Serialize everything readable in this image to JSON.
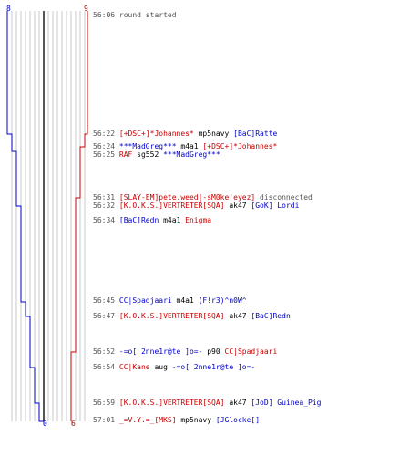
{
  "scores": {
    "blue_start": "8",
    "red_start": "9",
    "blue_end": "0",
    "red_end": "6"
  },
  "colors": {
    "blue": "#0000c8",
    "red": "#c80000",
    "gray": "#555555",
    "grid": "#c8c8c8"
  },
  "events": [
    {
      "time": "56:06",
      "parts": [
        {
          "text": "round started",
          "color": "gray"
        }
      ]
    },
    {
      "time": "56:22",
      "parts": [
        {
          "text": "[+DSC+]*Johannes*",
          "color": "red"
        },
        {
          "text": " mp5navy ",
          "color": "black"
        },
        {
          "text": "[BaC]Ratte",
          "color": "blue"
        }
      ]
    },
    {
      "time": "56:24",
      "parts": [
        {
          "text": "***MadGreg***",
          "color": "blue"
        },
        {
          "text": " m4a1 ",
          "color": "black"
        },
        {
          "text": "[+DSC+]*Johannes*",
          "color": "red"
        }
      ]
    },
    {
      "time": "56:25",
      "parts": [
        {
          "text": "RAF",
          "color": "red"
        },
        {
          "text": " sg552 ",
          "color": "black"
        },
        {
          "text": "***MadGreg***",
          "color": "blue"
        }
      ]
    },
    {
      "time": "56:31",
      "parts": [
        {
          "text": "[SLAY-EM]pete.weed|-sM0ke'eyez]",
          "color": "red"
        },
        {
          "text": " disconnected",
          "color": "gray"
        }
      ]
    },
    {
      "time": "56:32",
      "parts": [
        {
          "text": "[K.O.K.S.]VERTRETER[SQA]",
          "color": "red"
        },
        {
          "text": " ak47 ",
          "color": "black"
        },
        {
          "text": "[GoK] Lordi",
          "color": "blue"
        }
      ]
    },
    {
      "time": "56:34",
      "parts": [
        {
          "text": "[BaC]Redn",
          "color": "blue"
        },
        {
          "text": " m4a1 ",
          "color": "black"
        },
        {
          "text": "Enigma",
          "color": "red"
        }
      ]
    },
    {
      "time": "56:45",
      "parts": [
        {
          "text": "CC|Spadjaari",
          "color": "blue"
        },
        {
          "text": " m4a1 ",
          "color": "black"
        },
        {
          "text": "(F!r3)^n0W^",
          "color": "blue"
        }
      ]
    },
    {
      "time": "56:47",
      "parts": [
        {
          "text": "[K.O.K.S.]VERTRETER[SQA]",
          "color": "red"
        },
        {
          "text": " ak47 ",
          "color": "black"
        },
        {
          "text": "[BaC]Redn",
          "color": "blue"
        }
      ]
    },
    {
      "time": "56:52",
      "parts": [
        {
          "text": "-=o[ 2nne1r@te ]o=-",
          "color": "blue"
        },
        {
          "text": " p90 ",
          "color": "black"
        },
        {
          "text": "CC|Spadjaari",
          "color": "red"
        }
      ]
    },
    {
      "time": "56:54",
      "parts": [
        {
          "text": "CC|Kane",
          "color": "red"
        },
        {
          "text": " aug ",
          "color": "black"
        },
        {
          "text": "-=o[ 2nne1r@te ]o=-",
          "color": "blue"
        }
      ]
    },
    {
      "time": "56:59",
      "parts": [
        {
          "text": "[K.O.K.S.]VERTRETER[SQA]",
          "color": "red"
        },
        {
          "text": " ak47 ",
          "color": "black"
        },
        {
          "text": "[JoD] Guinea_Pig",
          "color": "blue"
        }
      ]
    },
    {
      "time": "57:01",
      "parts": [
        {
          "text": "_=V.Y.=_[MKS]",
          "color": "red"
        },
        {
          "text": " mp5navy ",
          "color": "black"
        },
        {
          "text": "[JGlocke[]",
          "color": "blue"
        }
      ]
    }
  ]
}
